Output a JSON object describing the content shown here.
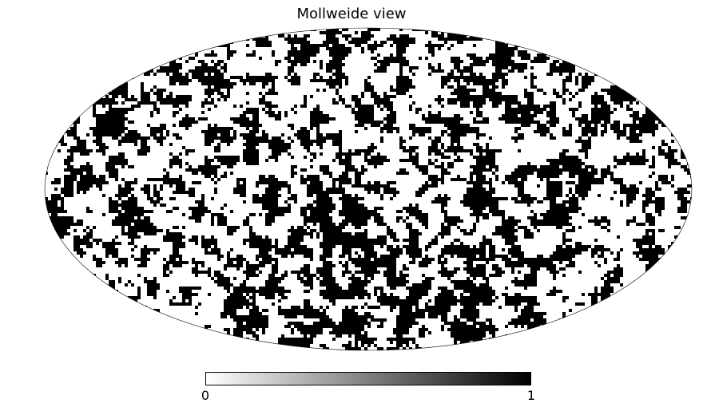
{
  "title": "Mollweide view",
  "projection": "mollweide",
  "colormap": {
    "name": "greys",
    "min_color": "#ffffff",
    "max_color": "#000000"
  },
  "colorbar": {
    "min_label": "0",
    "max_label": "1"
  }
}
